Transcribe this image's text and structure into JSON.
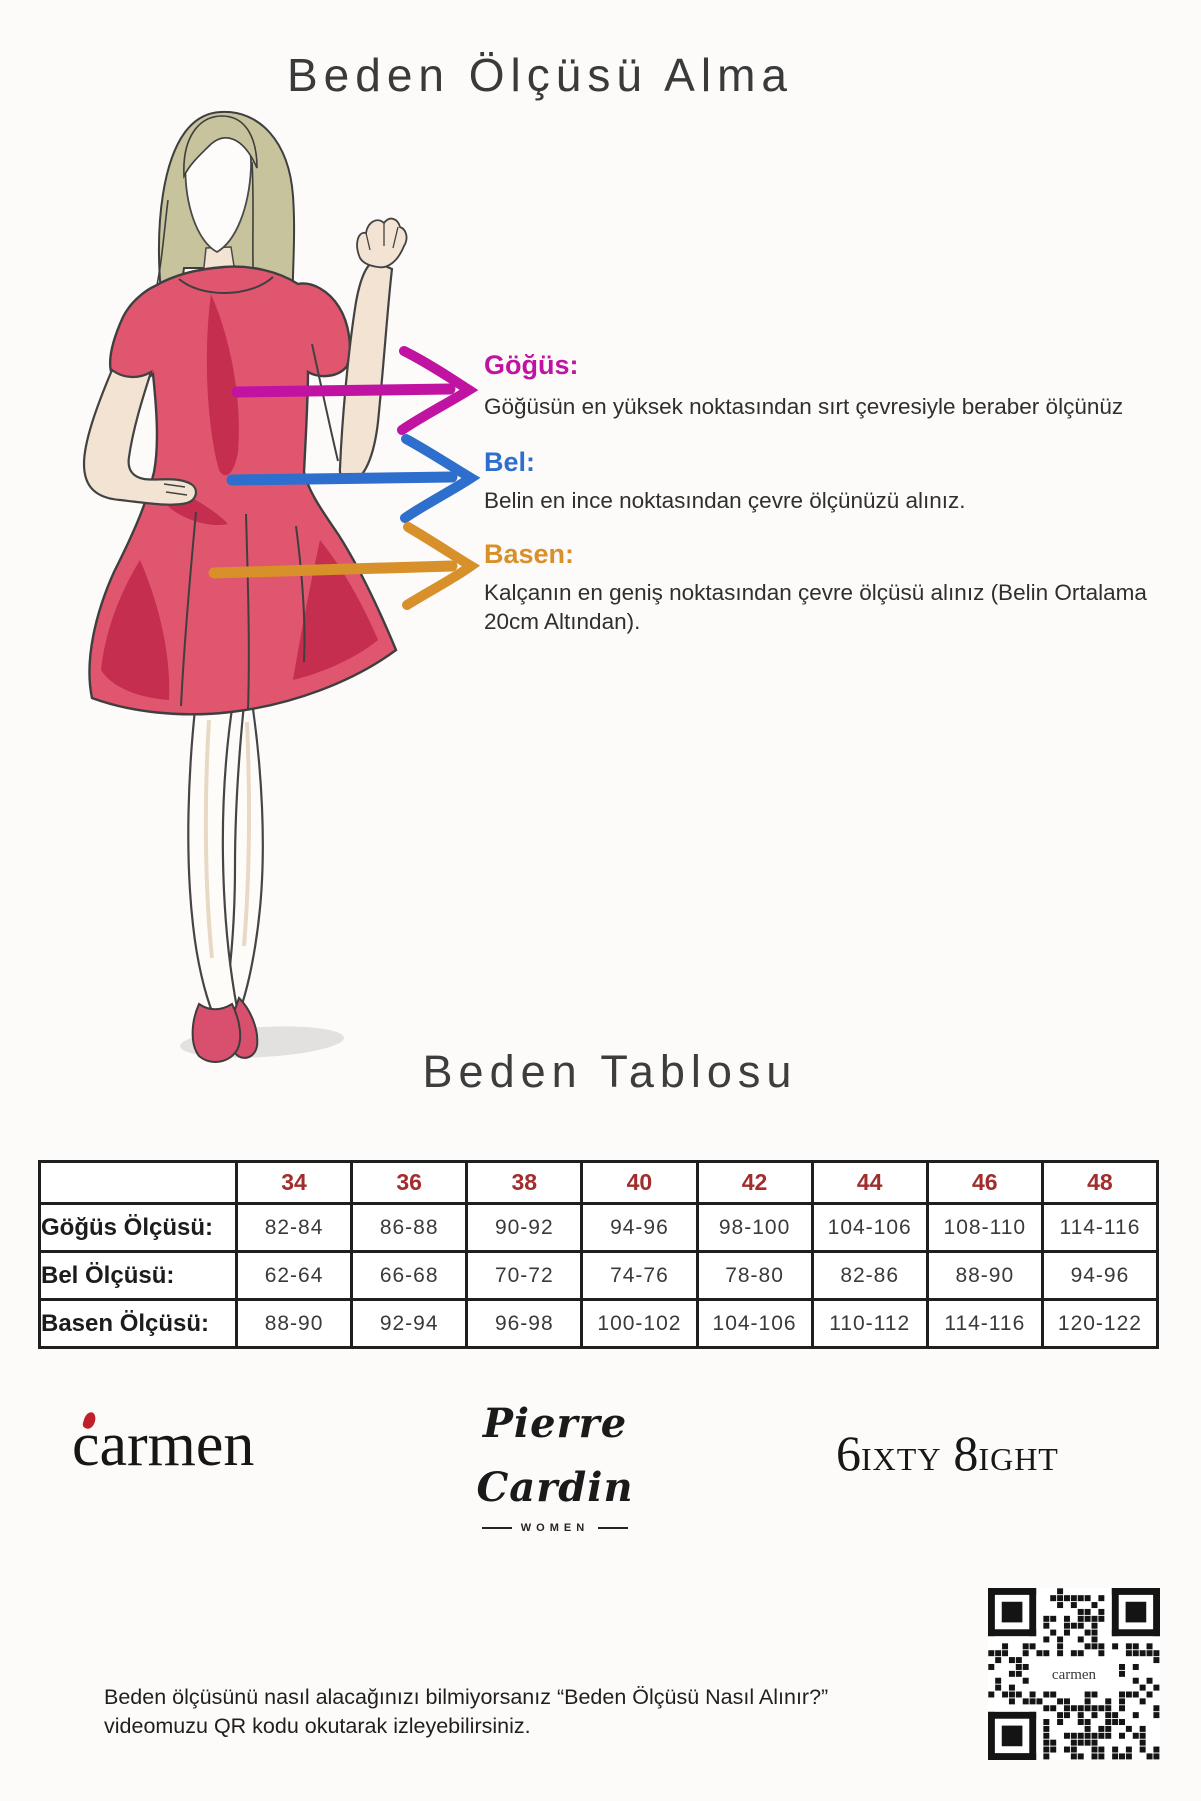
{
  "header": {
    "title": "Beden Ölçüsü Alma"
  },
  "measurements": [
    {
      "label": "Göğüs:",
      "color": "#c013a2",
      "description": "Göğüsün en yüksek noktasından sırt çevresiyle beraber ölçünüz"
    },
    {
      "label": "Bel:",
      "color": "#2e6fce",
      "description": "Belin en ince noktasından çevre ölçünüzü alınız."
    },
    {
      "label": "Basen:",
      "color": "#d8902b",
      "description": "Kalçanın en geniş noktasından çevre ölçüsü alınız (Belin Ortalama 20cm Altından)."
    }
  ],
  "size_table": {
    "title": "Beden Tablosu",
    "header_color": "#a12d2d",
    "sizes": [
      "34",
      "36",
      "38",
      "40",
      "42",
      "44",
      "46",
      "48"
    ],
    "rows": [
      {
        "label": "Göğüs Ölçüsü:",
        "values": [
          "82-84",
          "86-88",
          "90-92",
          "94-96",
          "98-100",
          "104-106",
          "108-110",
          "114-116"
        ]
      },
      {
        "label": "Bel Ölçüsü:",
        "values": [
          "62-64",
          "66-68",
          "70-72",
          "74-76",
          "78-80",
          "82-86",
          "88-90",
          "94-96"
        ]
      },
      {
        "label": "Basen Ölçüsü:",
        "values": [
          "88-90",
          "92-94",
          "96-98",
          "100-102",
          "104-106",
          "110-112",
          "114-116",
          "120-122"
        ]
      }
    ]
  },
  "brands": {
    "carmen": "carmen",
    "pierre_cardin": "Pierre Cardin",
    "pierre_cardin_sub": "WOMEN",
    "sixty_eight": {
      "num1": "6",
      "part1": "IXTY",
      "num2": "8",
      "part2": "IGHT"
    }
  },
  "qr": {
    "center_label": "carmen"
  },
  "footer": {
    "line1": "Beden ölçüsünü nasıl alacağınızı bilmiyorsanız “Beden Ölçüsü Nasıl Alınır?”",
    "line2": "videomuzu QR kodu okutarak izleyebilirsiniz."
  },
  "figure_colors": {
    "dress": "#e0566f",
    "dress_shade": "#c52e4f",
    "hair": "#c7c39d",
    "skin": "#f2e3d2",
    "shoes": "#d94f6e"
  }
}
